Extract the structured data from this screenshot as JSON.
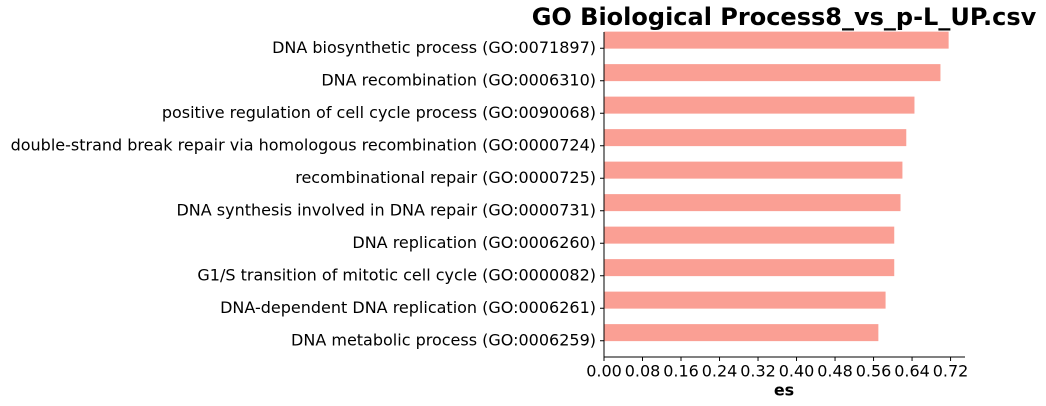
{
  "chart_data": {
    "type": "barh",
    "title": "GO Biological Process8_vs_p-L_UP.csv",
    "xlabel": "es",
    "categories": [
      "DNA biosynthetic process (GO:0071897)",
      "DNA recombination (GO:0006310)",
      "positive regulation of cell cycle process (GO:0090068)",
      "double-strand break repair via homologous recombination (GO:0000724)",
      "recombinational repair (GO:0000725)",
      "DNA synthesis involved in DNA repair (GO:0000731)",
      "DNA replication (GO:0006260)",
      "G1/S transition of mitotic cell cycle (GO:0000082)",
      "DNA-dependent DNA replication (GO:0006261)",
      "DNA metabolic process (GO:0006259)"
    ],
    "values": [
      0.716,
      0.699,
      0.645,
      0.628,
      0.62,
      0.616,
      0.603,
      0.603,
      0.585,
      0.57
    ],
    "color": "#fa9f94",
    "xlim": [
      0,
      0.75
    ],
    "xticks": [
      {
        "value": 0,
        "label": "0.00"
      },
      {
        "value": 0.08,
        "label": "0.08"
      },
      {
        "value": 0.16,
        "label": "0.16"
      },
      {
        "value": 0.24,
        "label": "0.24"
      },
      {
        "value": 0.32,
        "label": "0.32"
      },
      {
        "value": 0.4,
        "label": "0.40"
      },
      {
        "value": 0.48,
        "label": "0.48"
      },
      {
        "value": 0.56,
        "label": "0.56"
      },
      {
        "value": 0.64,
        "label": "0.64"
      },
      {
        "value": 0.72,
        "label": "0.72"
      }
    ]
  }
}
